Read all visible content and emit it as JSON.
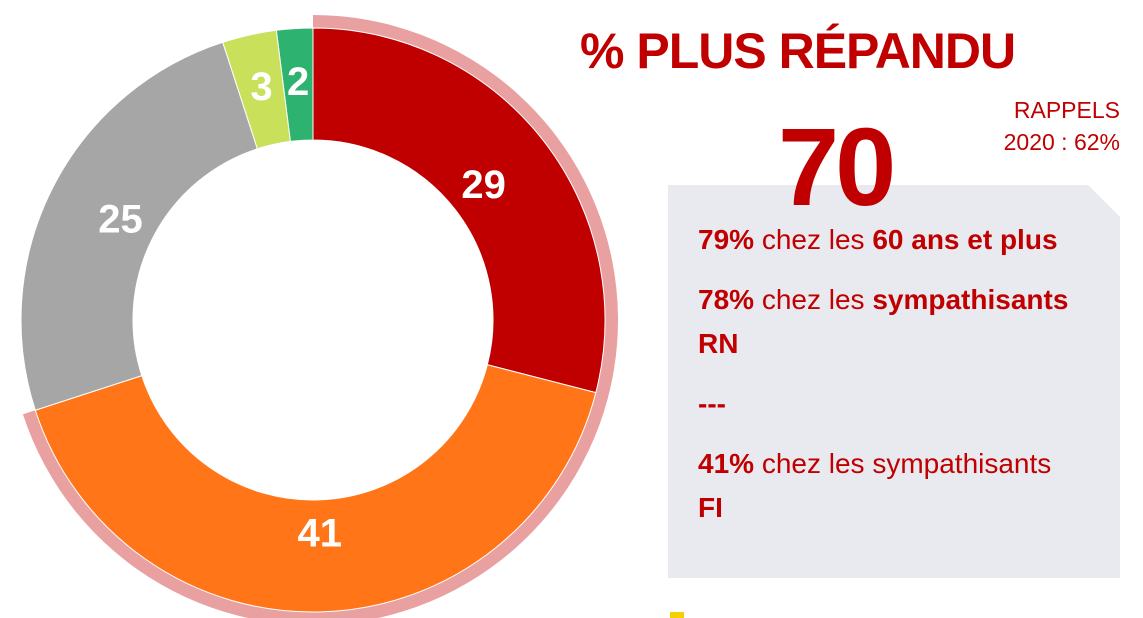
{
  "chart_data": {
    "type": "donut",
    "title": "% PLUS RÉPANDU",
    "values": [
      29,
      41,
      25,
      3,
      2
    ],
    "colors": [
      "#c00000",
      "#ff7518",
      "#a6a6a6",
      "#c8e05a",
      "#2db36f"
    ],
    "highlight": {
      "segments": [
        0,
        1
      ],
      "color": "#e8a0a0",
      "total": 70
    },
    "reminder": [
      "RAPPELS",
      "2020 : 62%"
    ],
    "notes": [
      [
        {
          "text": "79%",
          "bold": true
        },
        {
          "text": " chez les ",
          "bold": false
        },
        {
          "text": "60 ans et plus",
          "bold": true
        }
      ],
      [
        {
          "text": "78%",
          "bold": true
        },
        {
          "text": " chez les ",
          "bold": false
        },
        {
          "text": "sympathisants RN",
          "bold": true
        }
      ],
      [
        {
          "text": "---",
          "bold": true
        }
      ],
      [
        {
          "text": "41%",
          "bold": true
        },
        {
          "text": " chez les sympathisants ",
          "bold": false
        },
        {
          "text": "FI",
          "bold": true
        }
      ]
    ]
  }
}
